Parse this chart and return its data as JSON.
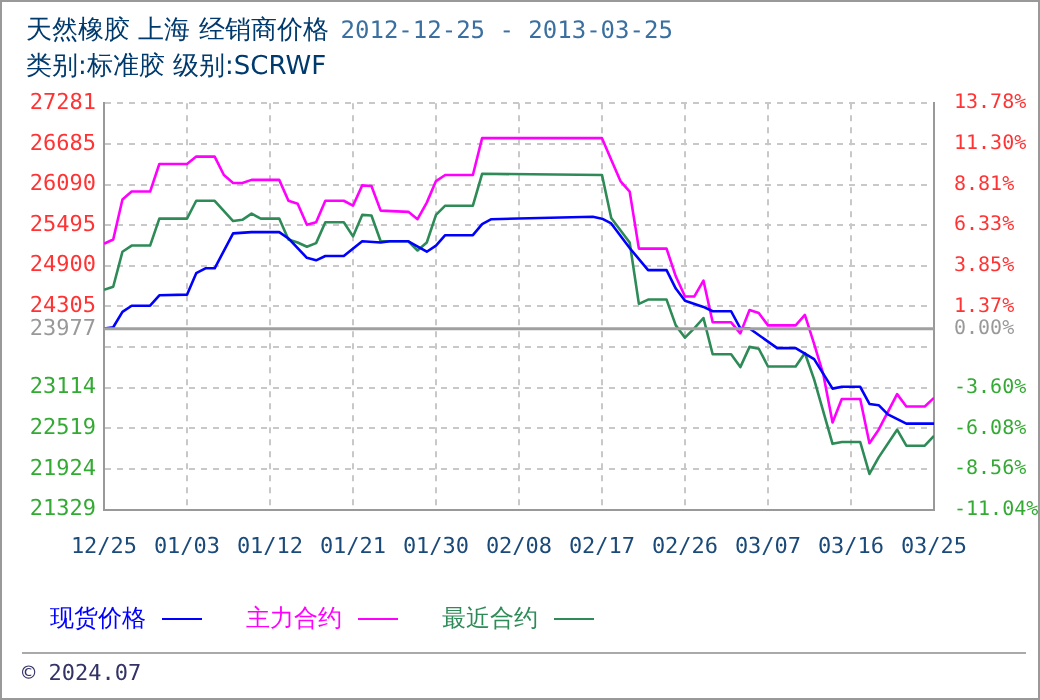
{
  "chart_data": {
    "type": "line",
    "title": "天然橡胶 上海 经销商价格",
    "subtitle": "2012-12-25 - 2013-03-25",
    "annotations": [
      "类别:标准胶 级别:SCRWF",
      "© 2024.07"
    ],
    "xlim": [
      "2012-12-25",
      "2013-03-25"
    ],
    "xticks": [
      {
        "value": "2012-12-25",
        "label": "12/25"
      },
      {
        "value": "2013-01-03",
        "label": "01/03"
      },
      {
        "value": "2013-01-12",
        "label": "01/12"
      },
      {
        "value": "2013-01-21",
        "label": "01/21"
      },
      {
        "value": "2013-01-30",
        "label": "01/30"
      },
      {
        "value": "2013-02-08",
        "label": "02/08"
      },
      {
        "value": "2013-02-17",
        "label": "02/17"
      },
      {
        "value": "2013-02-26",
        "label": "02/26"
      },
      {
        "value": "2013-03-07",
        "label": "03/07"
      },
      {
        "value": "2013-03-16",
        "label": "03/16"
      },
      {
        "value": "2013-03-25",
        "label": "03/25"
      }
    ],
    "ylim": [
      21329,
      27281
    ],
    "yticks": [
      21329,
      21924,
      22519,
      23114,
      {
        "value": 23709,
        "label": null
      },
      23977,
      24305,
      24900,
      25495,
      26090,
      26685,
      27281
    ],
    "y2lim": [
      -11.04,
      13.78
    ],
    "y2ticks": [
      {
        "value": -11.04,
        "label": "-11.04%"
      },
      {
        "value": -8.56,
        "label": "-8.56%"
      },
      {
        "value": -6.08,
        "label": "-6.08%"
      },
      {
        "value": -3.6,
        "label": "-3.60%"
      },
      {
        "value": 0,
        "label": "0.00%"
      },
      {
        "value": 1.37,
        "label": "1.37%"
      },
      {
        "value": 3.85,
        "label": "3.85%"
      },
      {
        "value": 6.33,
        "label": "6.33%"
      },
      {
        "value": 8.81,
        "label": "8.81%"
      },
      {
        "value": 11.3,
        "label": "11.30%"
      },
      {
        "value": 13.78,
        "label": "13.78%"
      }
    ],
    "ref_lines": [
      {
        "axis": "y",
        "value": 23977,
        "color": "#a0a0a0"
      }
    ],
    "grid": true,
    "legend": "bottom",
    "marker": "none",
    "line_style": "solid",
    "series": [
      {
        "name": "现货价格",
        "color": "#0000ff",
        "x": [
          "2012-12-25",
          "2012-12-26",
          "2012-12-27",
          "2012-12-28",
          "2012-12-30",
          "2012-12-31",
          "2013-01-03",
          "2013-01-04",
          "2013-01-05",
          "2013-01-06",
          "2013-01-08",
          "2013-01-10",
          "2013-01-13",
          "2013-01-14",
          "2013-01-16",
          "2013-01-17",
          "2013-01-18",
          "2013-01-20",
          "2013-01-22",
          "2013-01-24",
          "2013-01-25",
          "2013-01-27",
          "2013-01-29",
          "2013-01-30",
          "2013-01-31",
          "2013-02-03",
          "2013-02-04",
          "2013-02-05",
          "2013-02-16",
          "2013-02-17",
          "2013-02-18",
          "2013-02-20",
          "2013-02-22",
          "2013-02-24",
          "2013-02-25",
          "2013-02-26",
          "2013-02-28",
          "2013-03-01",
          "2013-03-03",
          "2013-03-04",
          "2013-03-05",
          "2013-03-08",
          "2013-03-10",
          "2013-03-12",
          "2013-03-14",
          "2013-03-15",
          "2013-03-17",
          "2013-03-18",
          "2013-03-19",
          "2013-03-20",
          "2013-03-22",
          "2013-03-25"
        ],
        "values": [
          23980,
          24000,
          24225,
          24315,
          24315,
          24468,
          24477,
          24791,
          24863,
          24863,
          25375,
          25393,
          25393,
          25300,
          25016,
          24980,
          25043,
          25043,
          25259,
          25241,
          25259,
          25259,
          25106,
          25196,
          25348,
          25348,
          25510,
          25582,
          25618,
          25590,
          25520,
          25160,
          24836,
          24836,
          24566,
          24387,
          24297,
          24234,
          24234,
          23982,
          23982,
          23694,
          23694,
          23532,
          23101,
          23128,
          23128,
          22876,
          22858,
          22723,
          22588,
          22588
        ]
      },
      {
        "name": "主力合约",
        "color": "#ff00ff",
        "x": [
          "2012-12-25",
          "2012-12-26",
          "2012-12-27",
          "2012-12-28",
          "2012-12-30",
          "2012-12-31",
          "2013-01-03",
          "2013-01-04",
          "2013-01-06",
          "2013-01-07",
          "2013-01-08",
          "2013-01-09",
          "2013-01-10",
          "2013-01-13",
          "2013-01-14",
          "2013-01-15",
          "2013-01-16",
          "2013-01-17",
          "2013-01-18",
          "2013-01-20",
          "2013-01-21",
          "2013-01-22",
          "2013-01-23",
          "2013-01-24",
          "2013-01-27",
          "2013-01-28",
          "2013-01-29",
          "2013-01-30",
          "2013-01-31",
          "2013-02-03",
          "2013-02-04",
          "2013-02-17",
          "2013-02-18",
          "2013-02-19",
          "2013-02-20",
          "2013-02-21",
          "2013-02-24",
          "2013-02-25",
          "2013-02-26",
          "2013-02-27",
          "2013-02-28",
          "2013-03-01",
          "2013-03-03",
          "2013-03-04",
          "2013-03-05",
          "2013-03-06",
          "2013-03-07",
          "2013-03-10",
          "2013-03-11",
          "2013-03-12",
          "2013-03-13",
          "2013-03-14",
          "2013-03-15",
          "2013-03-17",
          "2013-03-18",
          "2013-03-19",
          "2013-03-21",
          "2013-03-22",
          "2013-03-24",
          "2013-03-25"
        ],
        "values": [
          25223,
          25285,
          25870,
          25987,
          25987,
          26391,
          26391,
          26499,
          26499,
          26230,
          26113,
          26113,
          26158,
          26158,
          25852,
          25807,
          25500,
          25537,
          25852,
          25852,
          25780,
          26077,
          26068,
          25708,
          25690,
          25582,
          25825,
          26140,
          26229,
          26229,
          26769,
          26769,
          26454,
          26140,
          25987,
          25151,
          25151,
          24746,
          24449,
          24449,
          24683,
          24072,
          24072,
          23910,
          24252,
          24207,
          24027,
          24027,
          24180,
          23757,
          23308,
          22606,
          22948,
          22948,
          22301,
          22499,
          23020,
          22840,
          22840,
          22966
        ]
      },
      {
        "name": "最近合约",
        "color": "#2e8b57",
        "x": [
          "2012-12-25",
          "2012-12-26",
          "2012-12-27",
          "2012-12-28",
          "2012-12-30",
          "2012-12-31",
          "2013-01-03",
          "2013-01-04",
          "2013-01-06",
          "2013-01-08",
          "2013-01-09",
          "2013-01-10",
          "2013-01-11",
          "2013-01-13",
          "2013-01-14",
          "2013-01-15",
          "2013-01-16",
          "2013-01-17",
          "2013-01-18",
          "2013-01-20",
          "2013-01-21",
          "2013-01-22",
          "2013-01-23",
          "2013-01-24",
          "2013-01-27",
          "2013-01-28",
          "2013-01-29",
          "2013-01-30",
          "2013-01-31",
          "2013-02-03",
          "2013-02-04",
          "2013-02-17",
          "2013-02-18",
          "2013-02-19",
          "2013-02-20",
          "2013-02-21",
          "2013-02-22",
          "2013-02-24",
          "2013-02-25",
          "2013-02-26",
          "2013-02-27",
          "2013-02-28",
          "2013-03-01",
          "2013-03-03",
          "2013-03-04",
          "2013-03-05",
          "2013-03-06",
          "2013-03-07",
          "2013-03-10",
          "2013-03-11",
          "2013-03-12",
          "2013-03-14",
          "2013-03-15",
          "2013-03-17",
          "2013-03-18",
          "2013-03-19",
          "2013-03-21",
          "2013-03-22",
          "2013-03-24",
          "2013-03-25"
        ],
        "values": [
          24548,
          24593,
          25106,
          25196,
          25196,
          25591,
          25591,
          25852,
          25852,
          25555,
          25573,
          25663,
          25591,
          25591,
          25285,
          25241,
          25178,
          25232,
          25537,
          25537,
          25330,
          25645,
          25636,
          25259,
          25259,
          25124,
          25241,
          25645,
          25780,
          25780,
          26247,
          26229,
          25600,
          25420,
          25241,
          24342,
          24405,
          24405,
          24027,
          23847,
          23982,
          24135,
          23604,
          23604,
          23416,
          23712,
          23685,
          23425,
          23425,
          23622,
          23236,
          22292,
          22319,
          22319,
          21851,
          22094,
          22499,
          22265,
          22265,
          22409
        ]
      }
    ]
  }
}
